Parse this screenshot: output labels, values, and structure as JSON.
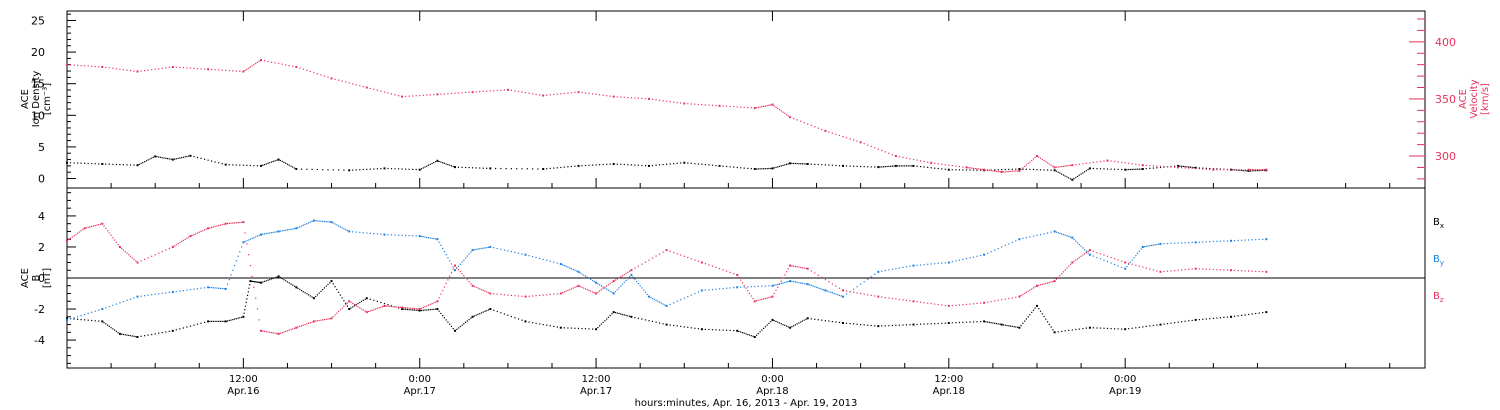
{
  "chart_data": [
    {
      "type": "scatter",
      "panel": "top",
      "ylabel_left": [
        "ACE",
        "Ion Density",
        "[cm⁻³]"
      ],
      "ylabel_right": [
        "ACE",
        "Velocity",
        "[km/s]"
      ],
      "left_axis": {
        "ylim": [
          -1.5,
          26.5
        ],
        "ticks": [
          0,
          5,
          10,
          15,
          20,
          25
        ]
      },
      "right_axis": {
        "ylim": [
          272,
          427
        ],
        "ticks": [
          300,
          350,
          400
        ]
      },
      "series": [
        {
          "axis": "left",
          "color": "#000000",
          "points": [
            [
              0.0,
              2.5
            ],
            [
              0.1,
              2.3
            ],
            [
              0.2,
              2.1
            ],
            [
              0.25,
              3.5
            ],
            [
              0.3,
              3.0
            ],
            [
              0.35,
              3.6
            ],
            [
              0.45,
              2.2
            ],
            [
              0.55,
              2.0
            ],
            [
              0.6,
              3.0
            ],
            [
              0.65,
              1.5
            ],
            [
              0.8,
              1.3
            ],
            [
              0.9,
              1.6
            ],
            [
              1.0,
              1.4
            ],
            [
              1.05,
              2.8
            ],
            [
              1.1,
              1.8
            ],
            [
              1.2,
              1.6
            ],
            [
              1.35,
              1.5
            ],
            [
              1.45,
              2.0
            ],
            [
              1.55,
              2.3
            ],
            [
              1.65,
              2.0
            ],
            [
              1.75,
              2.5
            ],
            [
              1.85,
              2.0
            ],
            [
              1.95,
              1.5
            ],
            [
              2.0,
              1.6
            ],
            [
              2.05,
              2.4
            ],
            [
              2.1,
              2.3
            ],
            [
              2.2,
              2.0
            ],
            [
              2.3,
              1.8
            ],
            [
              2.35,
              2.0
            ],
            [
              2.4,
              2.0
            ],
            [
              2.5,
              1.4
            ],
            [
              2.6,
              1.3
            ],
            [
              2.7,
              1.5
            ],
            [
              2.8,
              1.3
            ],
            [
              2.85,
              -0.2
            ],
            [
              2.9,
              1.6
            ],
            [
              3.0,
              1.4
            ],
            [
              3.05,
              1.5
            ],
            [
              3.15,
              2.0
            ],
            [
              3.2,
              1.7
            ],
            [
              3.3,
              1.4
            ],
            [
              3.35,
              1.2
            ],
            [
              3.4,
              1.3
            ]
          ]
        },
        {
          "axis": "right",
          "color": "#e8305c",
          "points": [
            [
              0.0,
              380
            ],
            [
              0.1,
              378
            ],
            [
              0.2,
              374
            ],
            [
              0.3,
              378
            ],
            [
              0.4,
              376
            ],
            [
              0.5,
              374
            ],
            [
              0.55,
              384
            ],
            [
              0.65,
              378
            ],
            [
              0.75,
              368
            ],
            [
              0.85,
              360
            ],
            [
              0.95,
              352
            ],
            [
              1.05,
              354
            ],
            [
              1.15,
              356
            ],
            [
              1.25,
              358
            ],
            [
              1.35,
              353
            ],
            [
              1.45,
              356
            ],
            [
              1.55,
              352
            ],
            [
              1.65,
              350
            ],
            [
              1.75,
              346
            ],
            [
              1.85,
              344
            ],
            [
              1.95,
              342
            ],
            [
              2.0,
              345
            ],
            [
              2.05,
              334
            ],
            [
              2.15,
              322
            ],
            [
              2.25,
              312
            ],
            [
              2.35,
              300
            ],
            [
              2.45,
              294
            ],
            [
              2.55,
              290
            ],
            [
              2.6,
              288
            ],
            [
              2.65,
              286
            ],
            [
              2.7,
              287
            ],
            [
              2.75,
              300
            ],
            [
              2.8,
              290
            ],
            [
              2.85,
              292
            ],
            [
              2.95,
              296
            ],
            [
              3.05,
              292
            ],
            [
              3.15,
              290
            ],
            [
              3.25,
              288
            ],
            [
              3.35,
              288
            ],
            [
              3.4,
              288
            ]
          ]
        }
      ]
    },
    {
      "type": "scatter",
      "panel": "bottom",
      "ylabel": [
        "ACE",
        "B",
        "[nT]"
      ],
      "ylim": [
        -5.8,
        5.8
      ],
      "ticks": [
        -4,
        -2,
        0,
        2,
        4
      ],
      "zero_line": true,
      "x_ticks": [
        "12:00\nApr.16",
        "0:00\nApr.17",
        "12:00\nApr.17",
        "0:00\nApr.18",
        "12:00\nApr.18",
        "0:00\nApr.19"
      ],
      "x_tick_values": [
        0.5,
        1.0,
        1.5,
        2.0,
        2.5,
        3.0
      ],
      "xlim": [
        0.0,
        3.85
      ],
      "xlabel": "hours:minutes, Apr. 16, 2013 - Apr. 19, 2013",
      "series": [
        {
          "name": "B_x",
          "color": "#000000",
          "points": [
            [
              0.0,
              -2.6
            ],
            [
              0.1,
              -2.8
            ],
            [
              0.15,
              -3.6
            ],
            [
              0.2,
              -3.8
            ],
            [
              0.3,
              -3.4
            ],
            [
              0.4,
              -2.8
            ],
            [
              0.45,
              -2.8
            ],
            [
              0.5,
              -2.5
            ],
            [
              0.52,
              -0.2
            ],
            [
              0.55,
              -0.3
            ],
            [
              0.6,
              0.1
            ],
            [
              0.65,
              -0.6
            ],
            [
              0.7,
              -1.3
            ],
            [
              0.75,
              -0.2
            ],
            [
              0.8,
              -2.0
            ],
            [
              0.85,
              -1.3
            ],
            [
              0.95,
              -2.0
            ],
            [
              1.0,
              -2.1
            ],
            [
              1.05,
              -2.0
            ],
            [
              1.1,
              -3.4
            ],
            [
              1.15,
              -2.5
            ],
            [
              1.2,
              -2.0
            ],
            [
              1.3,
              -2.8
            ],
            [
              1.4,
              -3.2
            ],
            [
              1.5,
              -3.3
            ],
            [
              1.55,
              -2.2
            ],
            [
              1.6,
              -2.5
            ],
            [
              1.7,
              -3.0
            ],
            [
              1.8,
              -3.3
            ],
            [
              1.9,
              -3.4
            ],
            [
              1.95,
              -3.8
            ],
            [
              2.0,
              -2.7
            ],
            [
              2.05,
              -3.2
            ],
            [
              2.1,
              -2.6
            ],
            [
              2.2,
              -2.9
            ],
            [
              2.3,
              -3.1
            ],
            [
              2.4,
              -3.0
            ],
            [
              2.5,
              -2.9
            ],
            [
              2.6,
              -2.8
            ],
            [
              2.65,
              -3.0
            ],
            [
              2.7,
              -3.2
            ],
            [
              2.75,
              -1.8
            ],
            [
              2.8,
              -3.5
            ],
            [
              2.9,
              -3.2
            ],
            [
              3.0,
              -3.3
            ],
            [
              3.1,
              -3.0
            ],
            [
              3.2,
              -2.7
            ],
            [
              3.3,
              -2.5
            ],
            [
              3.4,
              -2.2
            ]
          ]
        },
        {
          "name": "B_y",
          "color": "#1a7fe0",
          "points": [
            [
              0.0,
              -2.7
            ],
            [
              0.1,
              -2.0
            ],
            [
              0.2,
              -1.2
            ],
            [
              0.3,
              -0.9
            ],
            [
              0.4,
              -0.6
            ],
            [
              0.45,
              -0.7
            ],
            [
              0.5,
              2.3
            ],
            [
              0.55,
              2.8
            ],
            [
              0.6,
              3.0
            ],
            [
              0.65,
              3.2
            ],
            [
              0.7,
              3.7
            ],
            [
              0.75,
              3.6
            ],
            [
              0.8,
              3.0
            ],
            [
              0.9,
              2.8
            ],
            [
              1.0,
              2.7
            ],
            [
              1.05,
              2.5
            ],
            [
              1.1,
              0.5
            ],
            [
              1.15,
              1.8
            ],
            [
              1.2,
              2.0
            ],
            [
              1.3,
              1.5
            ],
            [
              1.4,
              0.9
            ],
            [
              1.45,
              0.4
            ],
            [
              1.5,
              -0.3
            ],
            [
              1.55,
              -1.0
            ],
            [
              1.6,
              0.2
            ],
            [
              1.65,
              -1.2
            ],
            [
              1.7,
              -1.8
            ],
            [
              1.8,
              -0.8
            ],
            [
              1.9,
              -0.6
            ],
            [
              2.0,
              -0.5
            ],
            [
              2.05,
              -0.2
            ],
            [
              2.1,
              -0.4
            ],
            [
              2.15,
              -0.8
            ],
            [
              2.2,
              -1.2
            ],
            [
              2.3,
              0.4
            ],
            [
              2.4,
              0.8
            ],
            [
              2.5,
              1.0
            ],
            [
              2.6,
              1.5
            ],
            [
              2.7,
              2.5
            ],
            [
              2.8,
              3.0
            ],
            [
              2.85,
              2.6
            ],
            [
              2.9,
              1.5
            ],
            [
              3.0,
              0.6
            ],
            [
              3.05,
              2.0
            ],
            [
              3.1,
              2.2
            ],
            [
              3.2,
              2.3
            ],
            [
              3.3,
              2.4
            ],
            [
              3.4,
              2.5
            ]
          ]
        },
        {
          "name": "B_z",
          "color": "#e8305c",
          "points": [
            [
              0.0,
              2.4
            ],
            [
              0.05,
              3.2
            ],
            [
              0.1,
              3.5
            ],
            [
              0.15,
              2.0
            ],
            [
              0.2,
              1.0
            ],
            [
              0.3,
              2.0
            ],
            [
              0.35,
              2.7
            ],
            [
              0.4,
              3.2
            ],
            [
              0.45,
              3.5
            ],
            [
              0.5,
              3.6
            ],
            [
              0.55,
              -3.4
            ],
            [
              0.6,
              -3.6
            ],
            [
              0.65,
              -3.2
            ],
            [
              0.7,
              -2.8
            ],
            [
              0.75,
              -2.6
            ],
            [
              0.8,
              -1.5
            ],
            [
              0.85,
              -2.2
            ],
            [
              0.9,
              -1.8
            ],
            [
              0.95,
              -1.9
            ],
            [
              1.0,
              -2.0
            ],
            [
              1.05,
              -1.5
            ],
            [
              1.1,
              0.8
            ],
            [
              1.15,
              -0.5
            ],
            [
              1.2,
              -1.0
            ],
            [
              1.3,
              -1.2
            ],
            [
              1.4,
              -1.0
            ],
            [
              1.45,
              -0.5
            ],
            [
              1.5,
              -1.0
            ],
            [
              1.55,
              -0.2
            ],
            [
              1.6,
              0.5
            ],
            [
              1.7,
              1.8
            ],
            [
              1.8,
              1.0
            ],
            [
              1.9,
              0.2
            ],
            [
              1.95,
              -1.5
            ],
            [
              2.0,
              -1.2
            ],
            [
              2.05,
              0.8
            ],
            [
              2.1,
              0.6
            ],
            [
              2.2,
              -0.8
            ],
            [
              2.3,
              -1.2
            ],
            [
              2.4,
              -1.5
            ],
            [
              2.5,
              -1.8
            ],
            [
              2.6,
              -1.6
            ],
            [
              2.7,
              -1.2
            ],
            [
              2.75,
              -0.5
            ],
            [
              2.8,
              -0.2
            ],
            [
              2.85,
              1.0
            ],
            [
              2.9,
              1.8
            ],
            [
              3.0,
              1.0
            ],
            [
              3.1,
              0.4
            ],
            [
              3.2,
              0.6
            ],
            [
              3.3,
              0.5
            ],
            [
              3.4,
              0.4
            ]
          ]
        }
      ]
    }
  ]
}
